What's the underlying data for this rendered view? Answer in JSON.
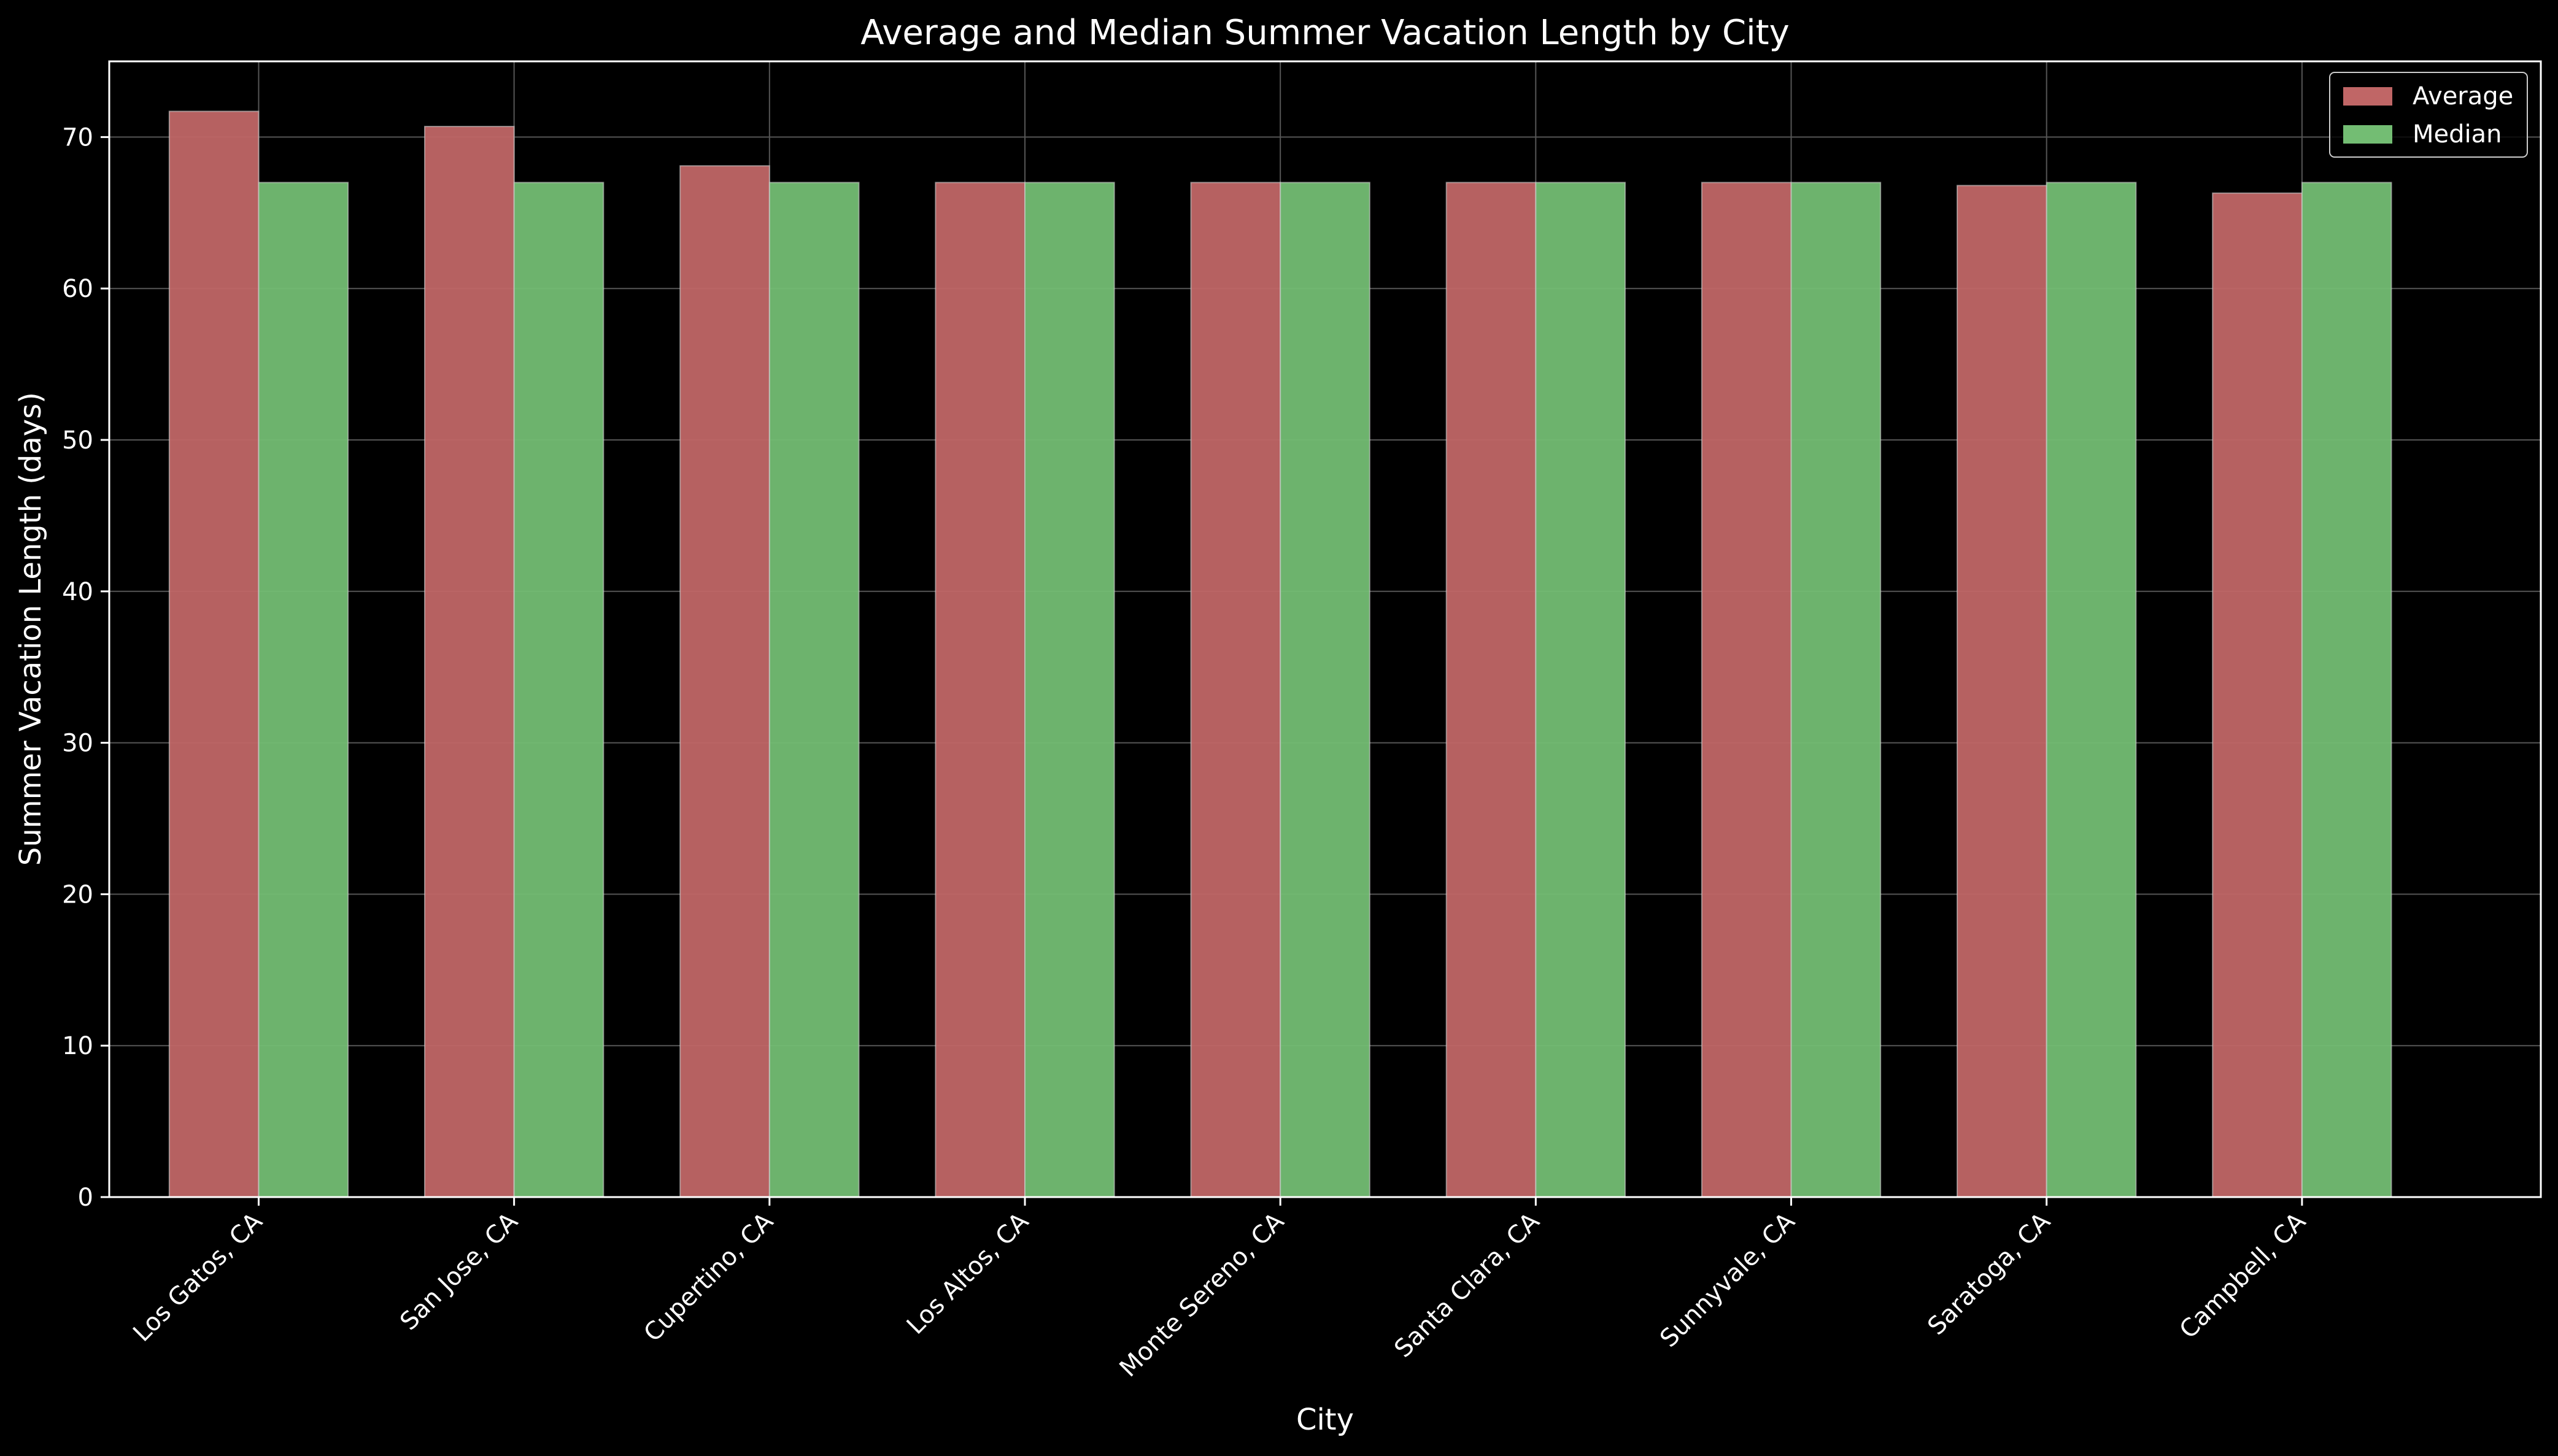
{
  "chart_data": {
    "type": "bar",
    "title": "Average and Median Summer Vacation Length by City",
    "xlabel": "City",
    "ylabel": "Summer Vacation Length (days)",
    "ylim": [
      0,
      75
    ],
    "yticks": [
      0,
      10,
      20,
      30,
      40,
      50,
      60,
      70
    ],
    "grid": true,
    "legend_position": "top-right",
    "categories": [
      "Los Gatos, CA",
      "San Jose, CA",
      "Cupertino, CA",
      "Los Altos, CA",
      "Monte Sereno, CA",
      "Santa Clara, CA",
      "Sunnyvale, CA",
      "Saratoga, CA",
      "Campbell, CA"
    ],
    "series": [
      {
        "name": "Average",
        "color": "#c06666",
        "values": [
          71.7,
          70.7,
          68.1,
          67.0,
          67.0,
          67.0,
          67.0,
          66.8,
          66.3
        ]
      },
      {
        "name": "Median",
        "color": "#73bd73",
        "values": [
          67.0,
          67.0,
          67.0,
          67.0,
          67.0,
          67.0,
          67.0,
          67.0,
          67.0
        ]
      }
    ],
    "colors": {
      "background": "#000000",
      "text": "#ffffff",
      "grid": "#555555"
    }
  }
}
